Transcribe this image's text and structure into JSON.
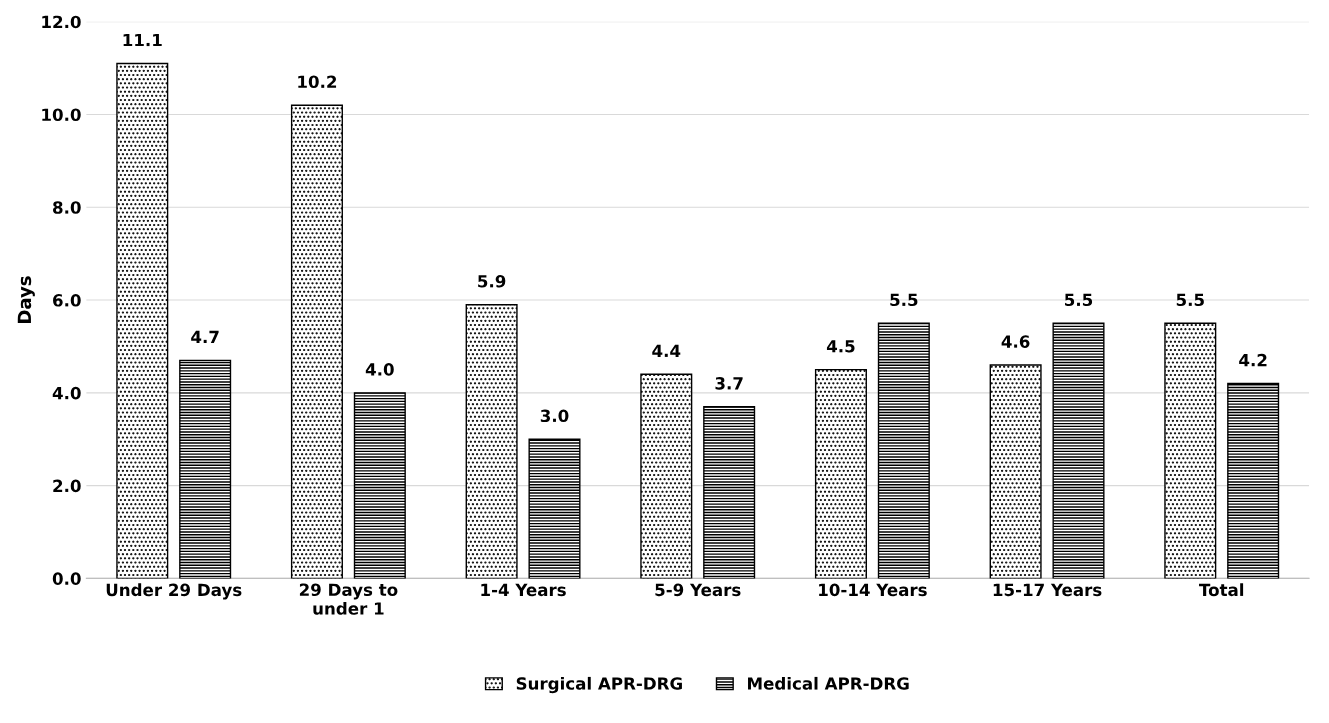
{
  "chart_data": {
    "type": "bar",
    "ylabel": "Days",
    "categories": [
      "Under 29 Days",
      "29 Days to under 1",
      "1-4 Years",
      "5-9 Years",
      "10-14 Years",
      "15-17 Years",
      "Total"
    ],
    "series": [
      {
        "name": "Surgical APR-DRG",
        "color": "#000000",
        "values": [
          11.1,
          10.2,
          5.9,
          4.4,
          4.5,
          4.6,
          5.5
        ],
        "value_labels": [
          "11.1",
          "10.2",
          "5.9",
          "4.4",
          "4.5",
          "4.6",
          "5.5"
        ]
      },
      {
        "name": "Medical APR-DRG",
        "color": "#000000",
        "values": [
          4.7,
          4.0,
          3.0,
          3.7,
          5.5,
          5.5,
          4.2
        ],
        "value_labels": [
          "4.7",
          "4.0",
          "3.0",
          "3.7",
          "5.5",
          "5.5",
          "4.2"
        ]
      }
    ],
    "ylim": [
      0,
      12
    ],
    "yticks": [
      {
        "value": 0,
        "label": "0.0"
      },
      {
        "value": 2,
        "label": "2.0"
      },
      {
        "value": 4,
        "label": "4.0"
      },
      {
        "value": 6,
        "label": "6.0"
      },
      {
        "value": 8,
        "label": "8.0"
      },
      {
        "value": 10,
        "label": "10.0"
      },
      {
        "value": 12,
        "label": "12.0"
      }
    ],
    "grid": "y",
    "legend": "bottom"
  }
}
